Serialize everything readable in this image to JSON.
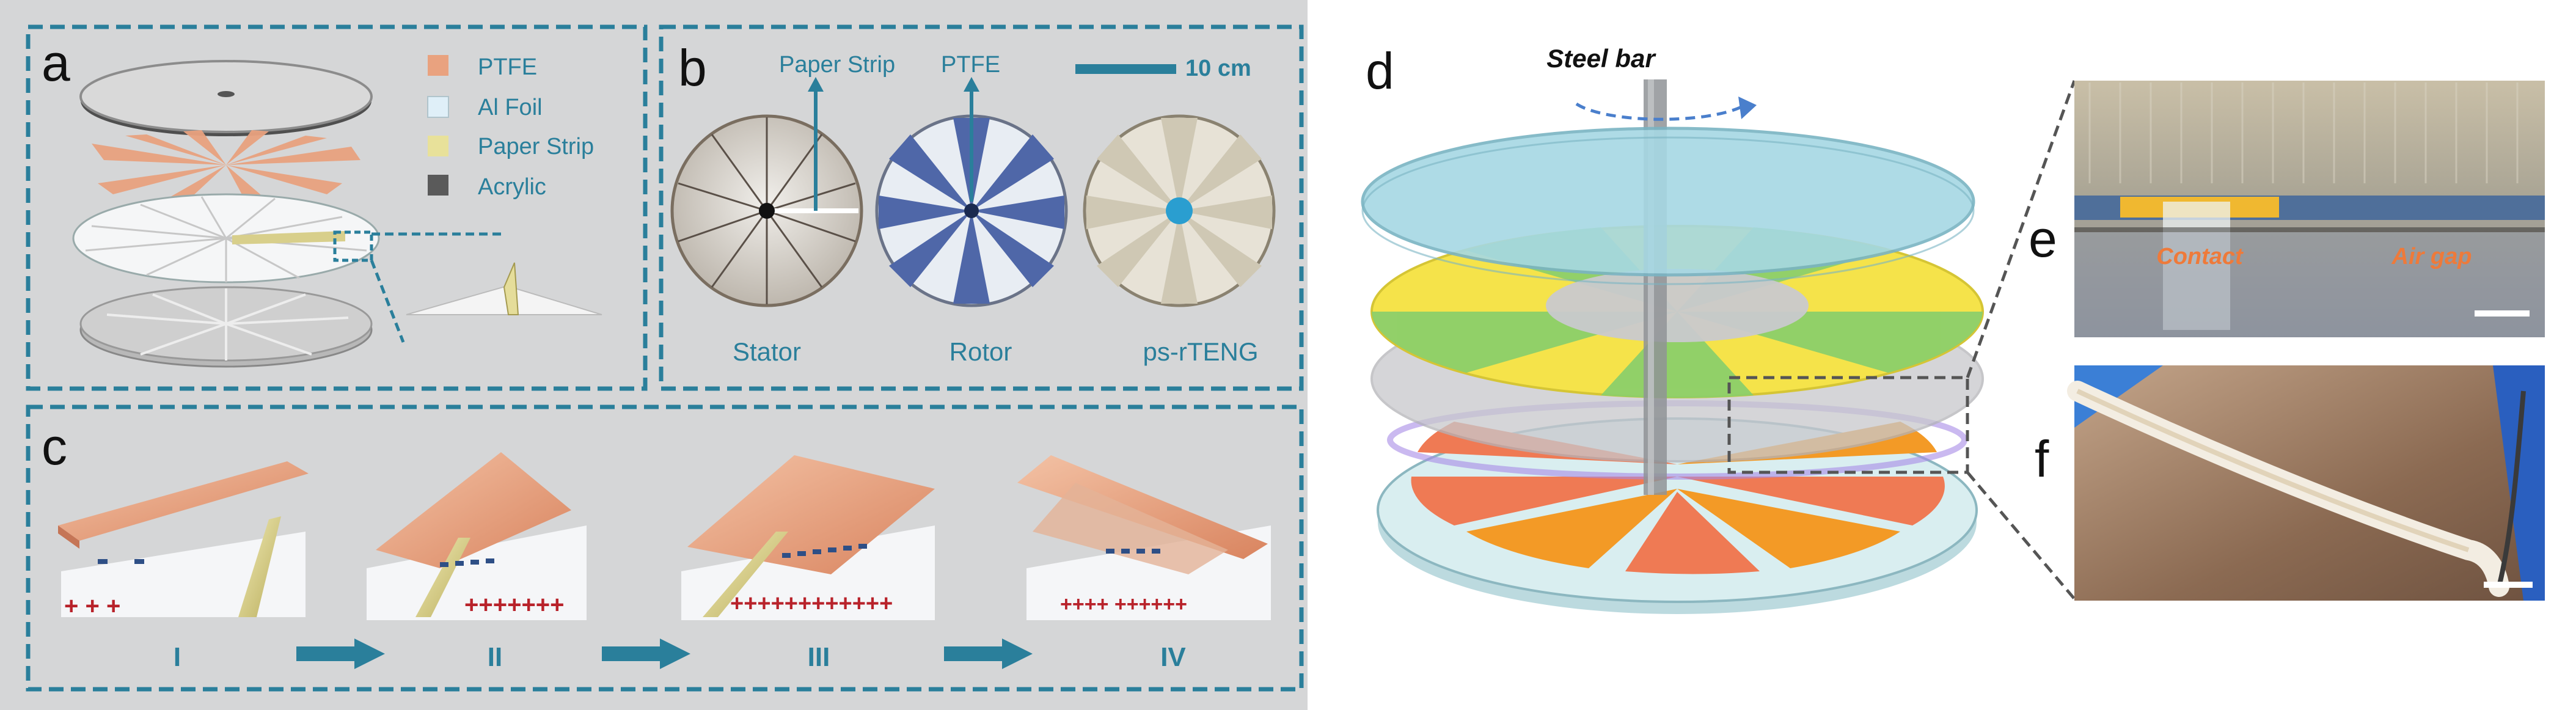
{
  "colors": {
    "ptfe": "#e9a27f",
    "al_foil": "#dfeff8",
    "paper_strip": "#e8e19a",
    "acrylic": "#5a5a5a",
    "frame": "#2a7f9b",
    "panel_bg": "#d5d6d7"
  },
  "panel_a": {
    "label": "a",
    "legend": [
      {
        "text": "PTFE",
        "swatch": "ptfe"
      },
      {
        "text": "Al  Foil",
        "swatch": "al_foil"
      },
      {
        "text": "Paper Strip",
        "swatch": "paper_strip"
      },
      {
        "text": "Acrylic",
        "swatch": "acrylic"
      }
    ]
  },
  "panel_b": {
    "label": "b",
    "annotations": {
      "paper_strip": "Paper Strip",
      "ptfe": "PTFE",
      "scale": "10 cm"
    },
    "photos": [
      {
        "caption": "Stator",
        "icon": "stator-photo-icon"
      },
      {
        "caption": "Rotor",
        "icon": "rotor-photo-icon"
      },
      {
        "caption": "ps-rTENG",
        "icon": "assembly-photo-icon"
      }
    ]
  },
  "panel_c": {
    "label": "c",
    "stages": [
      {
        "numeral": "I",
        "charges": "+ + +"
      },
      {
        "numeral": "II",
        "charges": "+++++++"
      },
      {
        "numeral": "III",
        "charges": "++++++++++++"
      },
      {
        "numeral": "IV",
        "charges": "++++  ++++++"
      }
    ]
  },
  "panel_d": {
    "label": "d",
    "steel_bar": "Steel bar"
  },
  "panel_e": {
    "label": "e",
    "contact": "Contact",
    "air_gap": "Air gap"
  },
  "panel_f": {
    "label": "f"
  }
}
